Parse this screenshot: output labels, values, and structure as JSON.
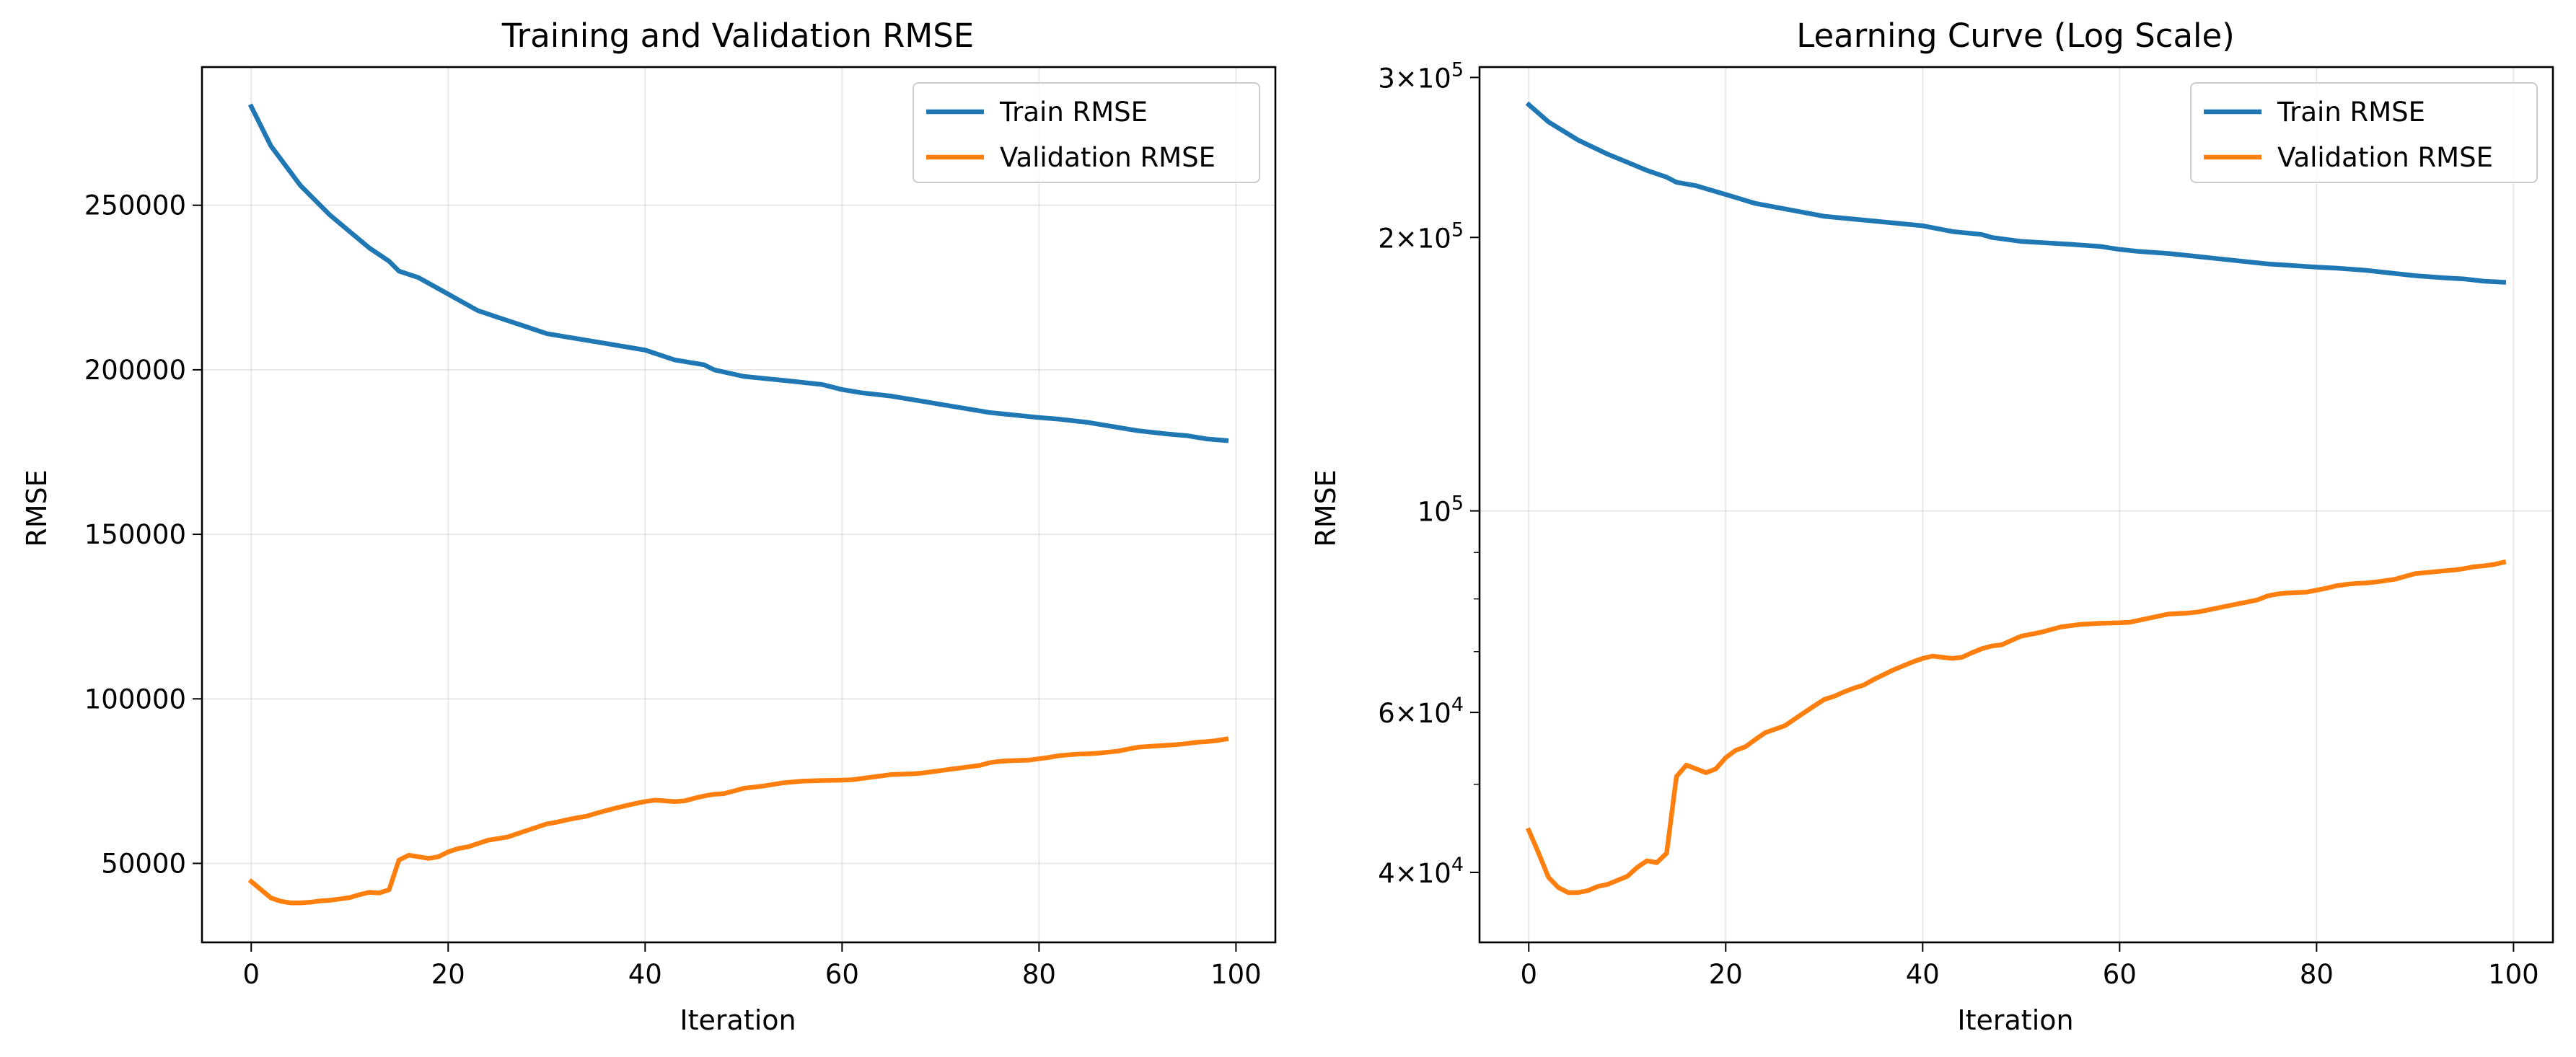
{
  "chart_data": [
    {
      "type": "line",
      "title": "Training and Validation RMSE",
      "xlabel": "Iteration",
      "ylabel": "RMSE",
      "xlim": [
        -5,
        104
      ],
      "ylim": [
        26000,
        292000
      ],
      "yscale": "linear",
      "grid": true,
      "legend": "top-right",
      "xticks": [
        0,
        20,
        40,
        60,
        80,
        100
      ],
      "yticks": [
        50000,
        100000,
        150000,
        200000,
        250000
      ],
      "yticklabels": [
        "50000",
        "100000",
        "150000",
        "200000",
        "250000"
      ],
      "series": [
        {
          "name": "Train RMSE",
          "color": "#1f77b4",
          "x": [
            0,
            2,
            5,
            8,
            10,
            12,
            14,
            15,
            17,
            20,
            23,
            25,
            28,
            30,
            35,
            40,
            43,
            46,
            47,
            50,
            55,
            58,
            60,
            62,
            65,
            68,
            70,
            75,
            80,
            82,
            85,
            87,
            90,
            93,
            95,
            97,
            99
          ],
          "y": [
            280000,
            268000,
            256000,
            247000,
            242000,
            237000,
            233000,
            230000,
            228000,
            223000,
            218000,
            216000,
            213000,
            211000,
            208500,
            206000,
            203000,
            201500,
            200000,
            198000,
            196500,
            195500,
            194000,
            193000,
            192000,
            190500,
            189500,
            187000,
            185500,
            185000,
            184000,
            183000,
            181500,
            180500,
            180000,
            179000,
            178500
          ]
        },
        {
          "name": "Validation RMSE",
          "color": "#ff7f0e",
          "x": [
            0,
            1,
            2,
            3,
            4,
            5,
            6,
            7,
            8,
            9,
            10,
            11,
            12,
            13,
            14,
            15,
            16,
            17,
            18,
            19,
            20,
            21,
            22,
            23,
            24,
            25,
            26,
            27,
            28,
            29,
            30,
            31,
            32,
            33,
            34,
            35,
            36,
            37,
            38,
            39,
            40,
            41,
            42,
            43,
            44,
            45,
            46,
            47,
            48,
            49,
            50,
            52,
            54,
            56,
            58,
            60,
            61,
            62,
            63,
            64,
            65,
            66,
            67,
            68,
            69,
            70,
            71,
            72,
            73,
            74,
            75,
            76,
            77,
            78,
            79,
            80,
            81,
            82,
            83,
            84,
            85,
            86,
            87,
            88,
            89,
            90,
            91,
            92,
            93,
            94,
            95,
            96,
            97,
            98,
            99
          ],
          "y": [
            44500,
            42000,
            39500,
            38500,
            38000,
            38000,
            38200,
            38600,
            38800,
            39200,
            39600,
            40500,
            41200,
            41000,
            42000,
            51000,
            52500,
            52000,
            51500,
            52000,
            53500,
            54500,
            55000,
            56000,
            57000,
            57500,
            58000,
            59000,
            60000,
            61000,
            62000,
            62500,
            63200,
            63800,
            64300,
            65200,
            66000,
            66800,
            67500,
            68200,
            68800,
            69200,
            69000,
            68800,
            69000,
            69800,
            70500,
            71000,
            71200,
            72000,
            72800,
            73500,
            74500,
            75000,
            75200,
            75300,
            75400,
            75800,
            76200,
            76600,
            77000,
            77100,
            77200,
            77400,
            77800,
            78200,
            78600,
            79000,
            79400,
            79800,
            80600,
            81000,
            81200,
            81300,
            81400,
            81800,
            82200,
            82700,
            83000,
            83200,
            83300,
            83500,
            83800,
            84100,
            84700,
            85300,
            85500,
            85700,
            85900,
            86100,
            86400,
            86800,
            87000,
            87300,
            87800
          ]
        }
      ]
    },
    {
      "type": "line",
      "title": "Learning Curve (Log Scale)",
      "xlabel": "Iteration",
      "ylabel": "RMSE",
      "xlim": [
        -5,
        104
      ],
      "ylim": [
        33500,
        308000
      ],
      "yscale": "log",
      "grid": true,
      "legend": "top-right",
      "xticks": [
        0,
        20,
        40,
        60,
        80,
        100
      ],
      "yticks": [
        40000,
        60000,
        100000,
        200000,
        300000
      ],
      "yticklabels": [
        {
          "mantissa": "4",
          "times": "×",
          "base": "10",
          "exp": "4"
        },
        {
          "mantissa": "6",
          "times": "×",
          "base": "10",
          "exp": "4"
        },
        {
          "mantissa": "",
          "times": "",
          "base": "10",
          "exp": "5"
        },
        {
          "mantissa": "2",
          "times": "×",
          "base": "10",
          "exp": "5"
        },
        {
          "mantissa": "3",
          "times": "×",
          "base": "10",
          "exp": "5"
        }
      ],
      "minor_yticks": [
        50000,
        70000,
        80000,
        90000
      ],
      "series": "same as chart_data[0].series"
    }
  ]
}
